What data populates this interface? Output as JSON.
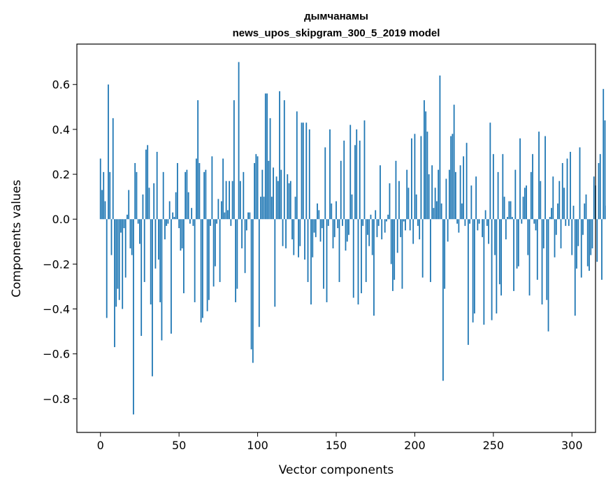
{
  "chart_data": {
    "type": "bar",
    "title": "дымчанамы",
    "subtitle": "news_upos_skipgram_300_5_2019 model",
    "xlabel": "Vector components",
    "ylabel": "Components values",
    "xlim": [
      -15,
      315
    ],
    "ylim": [
      -0.95,
      0.78
    ],
    "xticks": [
      0,
      50,
      100,
      150,
      200,
      250,
      300
    ],
    "xtick_labels": [
      "0",
      "50",
      "100",
      "150",
      "200",
      "250",
      "300"
    ],
    "yticks": [
      -0.8,
      -0.6,
      -0.4,
      -0.2,
      0.0,
      0.2,
      0.4,
      0.6
    ],
    "ytick_labels": [
      "−0.8",
      "−0.6",
      "−0.4",
      "−0.2",
      "0.0",
      "0.2",
      "0.4",
      "0.6"
    ],
    "grid": false,
    "bar_color": "#1f77b4",
    "values": [
      0.27,
      0.13,
      0.21,
      0.08,
      -0.44,
      0.6,
      0.21,
      -0.16,
      0.45,
      -0.57,
      -0.39,
      -0.31,
      -0.36,
      -0.06,
      -0.4,
      -0.04,
      -0.26,
      0.02,
      0.13,
      -0.13,
      -0.16,
      -0.87,
      0.25,
      0.21,
      -0.02,
      -0.11,
      -0.52,
      0.11,
      -0.28,
      0.31,
      0.33,
      0.14,
      -0.38,
      -0.7,
      0.16,
      -0.22,
      0.3,
      -0.18,
      -0.37,
      -0.54,
      0.21,
      -0.09,
      -0.03,
      -0.02,
      0.08,
      -0.51,
      0.03,
      0.01,
      0.12,
      0.25,
      -0.04,
      -0.14,
      -0.13,
      -0.33,
      0.21,
      0.22,
      0.12,
      -0.02,
      0.05,
      -0.03,
      -0.37,
      0.27,
      0.53,
      0.25,
      -0.46,
      -0.44,
      0.21,
      0.22,
      -0.41,
      -0.36,
      -0.03,
      0.28,
      -0.3,
      -0.21,
      -0.02,
      0.09,
      -0.28,
      0.08,
      0.27,
      0.03,
      0.17,
      0.04,
      0.17,
      -0.03,
      0.17,
      0.53,
      -0.37,
      -0.31,
      0.7,
      0.17,
      -0.13,
      0.21,
      -0.24,
      -0.05,
      0.03,
      0.03,
      -0.58,
      -0.64,
      0.25,
      0.29,
      0.28,
      -0.48,
      0.1,
      0.22,
      0.1,
      0.56,
      0.56,
      0.26,
      0.45,
      0.1,
      0.23,
      -0.39,
      0.19,
      0.17,
      0.57,
      0.22,
      -0.12,
      0.53,
      -0.13,
      0.2,
      0.16,
      0.17,
      -0.09,
      -0.16,
      0.1,
      0.48,
      -0.17,
      -0.12,
      0.43,
      0.43,
      -0.18,
      0.43,
      -0.28,
      0.4,
      -0.38,
      -0.17,
      -0.06,
      -0.08,
      0.07,
      0.04,
      -0.1,
      -0.04,
      -0.31,
      0.32,
      -0.37,
      -0.03,
      0.4,
      0.07,
      -0.13,
      -0.08,
      0.08,
      -0.04,
      -0.28,
      0.26,
      -0.03,
      0.35,
      -0.14,
      -0.1,
      -0.07,
      0.42,
      0.11,
      -0.35,
      0.33,
      0.4,
      -0.38,
      0.35,
      -0.33,
      -0.03,
      0.44,
      -0.28,
      -0.07,
      -0.12,
      0.02,
      -0.16,
      -0.43,
      0.04,
      -0.08,
      -0.03,
      0.24,
      -0.09,
      0.0,
      -0.06,
      -0.01,
      0.02,
      0.16,
      -0.2,
      -0.32,
      -0.27,
      0.26,
      -0.15,
      0.17,
      -0.08,
      -0.31,
      -0.01,
      -0.05,
      0.22,
      0.14,
      -0.05,
      0.36,
      -0.11,
      0.38,
      0.11,
      -0.03,
      -0.09,
      0.37,
      -0.26,
      0.53,
      0.48,
      0.39,
      0.2,
      -0.28,
      0.24,
      0.05,
      0.14,
      0.08,
      0.22,
      0.64,
      0.07,
      -0.72,
      -0.31,
      0.18,
      -0.1,
      0.22,
      0.37,
      0.38,
      0.51,
      0.21,
      -0.02,
      -0.06,
      0.24,
      0.07,
      0.28,
      -0.03,
      0.34,
      -0.56,
      -0.02,
      0.15,
      -0.46,
      -0.42,
      0.19,
      -0.05,
      -0.02,
      0.0,
      -0.08,
      -0.47,
      0.04,
      -0.03,
      -0.11,
      0.43,
      -0.45,
      0.29,
      -0.16,
      -0.42,
      0.21,
      -0.29,
      -0.34,
      0.29,
      0.1,
      -0.09,
      0.01,
      0.08,
      0.08,
      0.01,
      -0.32,
      0.22,
      -0.22,
      -0.21,
      0.36,
      -0.02,
      0.1,
      0.14,
      0.15,
      -0.16,
      -0.34,
      0.21,
      0.29,
      -0.02,
      -0.05,
      -0.27,
      0.39,
      0.17,
      -0.38,
      -0.13,
      0.37,
      -0.36,
      -0.5,
      0.01,
      0.05,
      0.19,
      -0.17,
      -0.07,
      0.07,
      0.17,
      -0.13,
      0.25,
      0.14,
      -0.03,
      0.27,
      -0.03,
      0.3,
      -0.16,
      0.06,
      -0.43,
      -0.22,
      -0.12,
      0.32,
      -0.26,
      -0.07,
      0.07,
      0.11,
      -0.21,
      -0.23,
      -0.16,
      -0.13,
      0.19,
      0.15,
      -0.19,
      0.25,
      0.29,
      -0.27,
      0.58,
      0.44,
      0.06
    ]
  }
}
